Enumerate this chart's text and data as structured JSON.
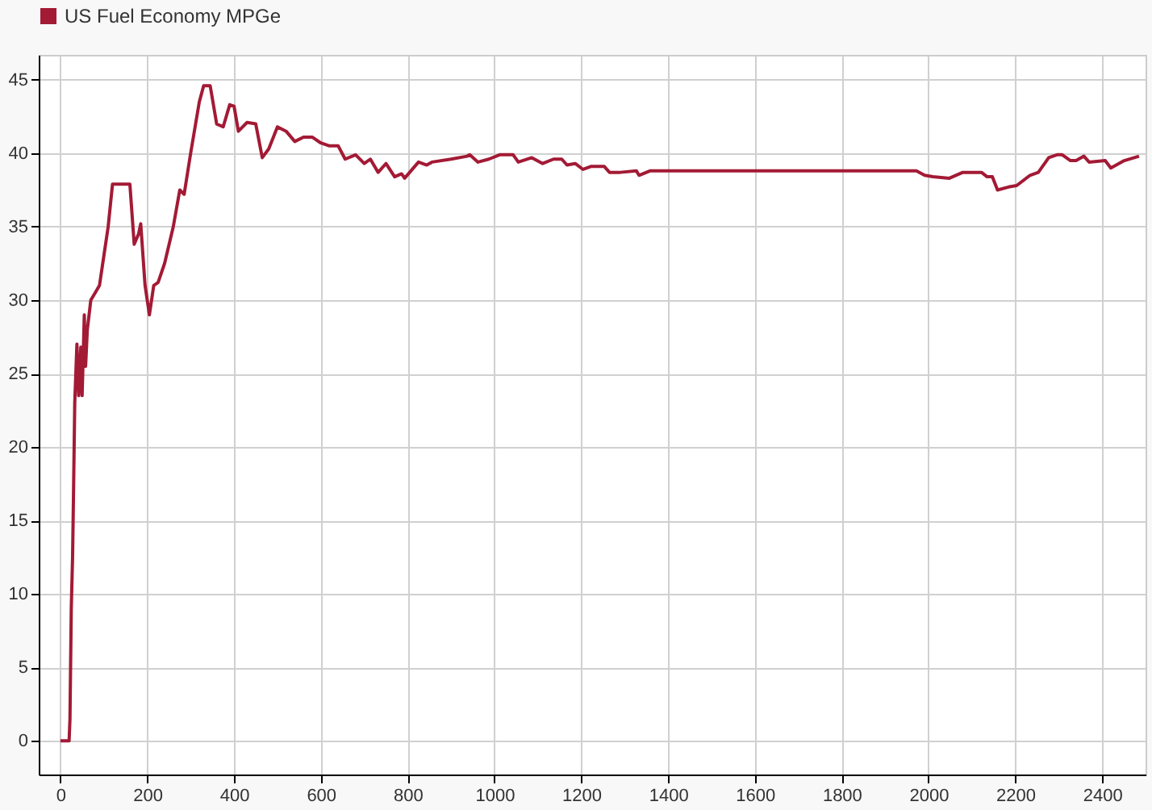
{
  "chart_data": {
    "type": "line",
    "x": [
      0,
      20,
      22,
      25,
      28,
      30,
      33,
      38,
      42,
      47,
      50,
      55,
      58,
      62,
      70,
      80,
      90,
      100,
      110,
      120,
      160,
      170,
      180,
      185,
      195,
      205,
      215,
      225,
      240,
      260,
      275,
      285,
      300,
      320,
      330,
      345,
      360,
      375,
      390,
      400,
      410,
      430,
      450,
      465,
      480,
      500,
      520,
      540,
      560,
      580,
      600,
      620,
      640,
      656,
      680,
      700,
      714,
      732,
      750,
      770,
      786,
      793,
      825,
      844,
      856,
      900,
      937,
      943,
      962,
      987,
      1012,
      1043,
      1055,
      1086,
      1111,
      1136,
      1155,
      1167,
      1186,
      1204,
      1222,
      1253,
      1265,
      1290,
      1327,
      1333,
      1358,
      1972,
      1991,
      2010,
      2048,
      2079,
      2122,
      2135,
      2147,
      2159,
      2184,
      2203,
      2234,
      2253,
      2277,
      2296,
      2308,
      2327,
      2340,
      2358,
      2370,
      2407,
      2420,
      2451,
      2485
    ],
    "series": [
      {
        "name": "US Fuel Economy MPGe",
        "color": "#a31a35",
        "values": [
          0,
          0,
          1.5,
          9,
          12.5,
          16.5,
          23,
          27,
          23.5,
          26.8,
          23.5,
          29,
          25.5,
          28,
          30,
          30.5,
          31,
          33,
          35,
          37.9,
          37.9,
          33.8,
          34.5,
          35.2,
          31,
          29,
          31,
          31.2,
          32.5,
          35,
          37.5,
          37.2,
          40,
          43.5,
          44.6,
          44.6,
          42,
          41.8,
          43.3,
          43.2,
          41.5,
          42.1,
          42,
          39.7,
          40.3,
          41.8,
          41.5,
          40.8,
          41.1,
          41.1,
          40.7,
          40.5,
          40.5,
          39.6,
          39.9,
          39.3,
          39.6,
          38.7,
          39.3,
          38.4,
          38.6,
          38.3,
          39.4,
          39.2,
          39.4,
          39.6,
          39.8,
          39.9,
          39.4,
          39.6,
          39.9,
          39.9,
          39.4,
          39.7,
          39.3,
          39.6,
          39.6,
          39.2,
          39.3,
          38.9,
          39.1,
          39.1,
          38.7,
          38.7,
          38.8,
          38.5,
          38.8,
          38.8,
          38.5,
          38.4,
          38.3,
          38.7,
          38.7,
          38.4,
          38.4,
          37.5,
          37.7,
          37.8,
          38.5,
          38.7,
          39.7,
          39.9,
          39.9,
          39.5,
          39.5,
          39.8,
          39.4,
          39.5,
          39.0,
          39.5,
          39.8
        ]
      }
    ],
    "xlim": [
      -50,
      2500
    ],
    "ylim": [
      -2.3,
      46.7
    ],
    "xticks": [
      0,
      200,
      400,
      600,
      800,
      1000,
      1200,
      1400,
      1600,
      1800,
      2000,
      2200,
      2400
    ],
    "yticks": [
      0,
      5,
      10,
      15,
      20,
      25,
      30,
      35,
      40,
      45
    ],
    "grid": true,
    "legend": "top left",
    "marker": "none",
    "line_style": "solid"
  }
}
